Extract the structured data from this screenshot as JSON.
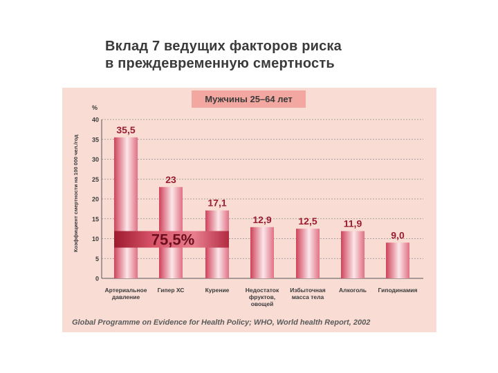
{
  "title_line1": "Вклад 7 ведущих факторов риска",
  "title_line2": "в преждевременную смертность",
  "source": "Global Programme on Evidence for Health Policy; WHO, World health Report, 2002",
  "colors": {
    "panel": "#f9ddd5",
    "subtitle_box": "#f2a8a0",
    "bar_dark": "#d24a60",
    "bar_light": "#fbe3e6",
    "label": "#9b1b30"
  },
  "chart_data": {
    "type": "bar",
    "title": "Мужчины 25–64 лет",
    "ylabel": "Коэффициент смертности на 100 000 чел./год",
    "yunit": "%",
    "ylim": [
      0,
      40
    ],
    "yticks": [
      0,
      5,
      10,
      15,
      20,
      25,
      30,
      35,
      40
    ],
    "categories": [
      [
        "Артериальное",
        "давление"
      ],
      [
        "Гипер ХС"
      ],
      [
        "Курение"
      ],
      [
        "Недостаток",
        "фруктов,",
        "овощей"
      ],
      [
        "Избыточная",
        "масса тела"
      ],
      [
        "Алкоголь"
      ],
      [
        "Гиподинамия"
      ]
    ],
    "values": [
      35.5,
      23,
      17.1,
      12.9,
      12.5,
      11.9,
      9.0
    ],
    "value_labels": [
      "35,5",
      "23",
      "17,1",
      "12,9",
      "12,5",
      "11,9",
      "9,0"
    ],
    "annotation": {
      "text": "75,5%",
      "y": 10,
      "spans_categories": [
        0,
        2
      ]
    },
    "grid": "dashed horizontal"
  }
}
